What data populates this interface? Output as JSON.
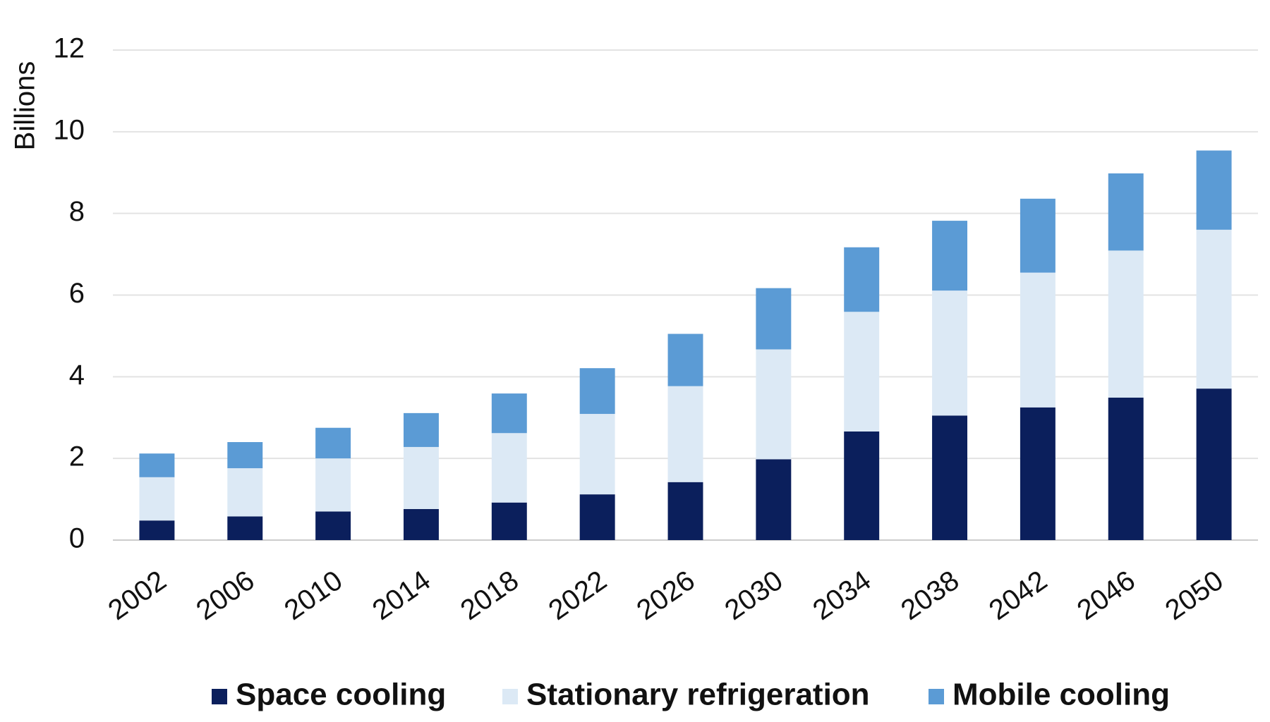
{
  "chart_data": {
    "type": "stacked_bar",
    "y_label": "Billions",
    "categories": [
      "2002",
      "2006",
      "2010",
      "2014",
      "2018",
      "2022",
      "2026",
      "2030",
      "2034",
      "2038",
      "2042",
      "2046",
      "2050"
    ],
    "series": [
      {
        "name": "Space cooling",
        "color": "#0b1f5c",
        "values": [
          0.48,
          0.58,
          0.7,
          0.76,
          0.92,
          1.12,
          1.42,
          1.98,
          2.66,
          3.05,
          3.25,
          3.49,
          3.71
        ]
      },
      {
        "name": "Stationary refrigeration",
        "color": "#dce9f5",
        "values": [
          1.06,
          1.18,
          1.3,
          1.52,
          1.7,
          1.97,
          2.35,
          2.69,
          2.93,
          3.06,
          3.3,
          3.6,
          3.89
        ]
      },
      {
        "name": "Mobile cooling",
        "color": "#5b9bd5",
        "values": [
          0.58,
          0.64,
          0.75,
          0.83,
          0.97,
          1.12,
          1.28,
          1.5,
          1.58,
          1.71,
          1.81,
          1.89,
          1.94
        ]
      }
    ],
    "ylim": [
      0,
      12
    ],
    "yticks": [
      0,
      2,
      4,
      6,
      8,
      10,
      12
    ],
    "grid": true,
    "legend": "bottom"
  }
}
